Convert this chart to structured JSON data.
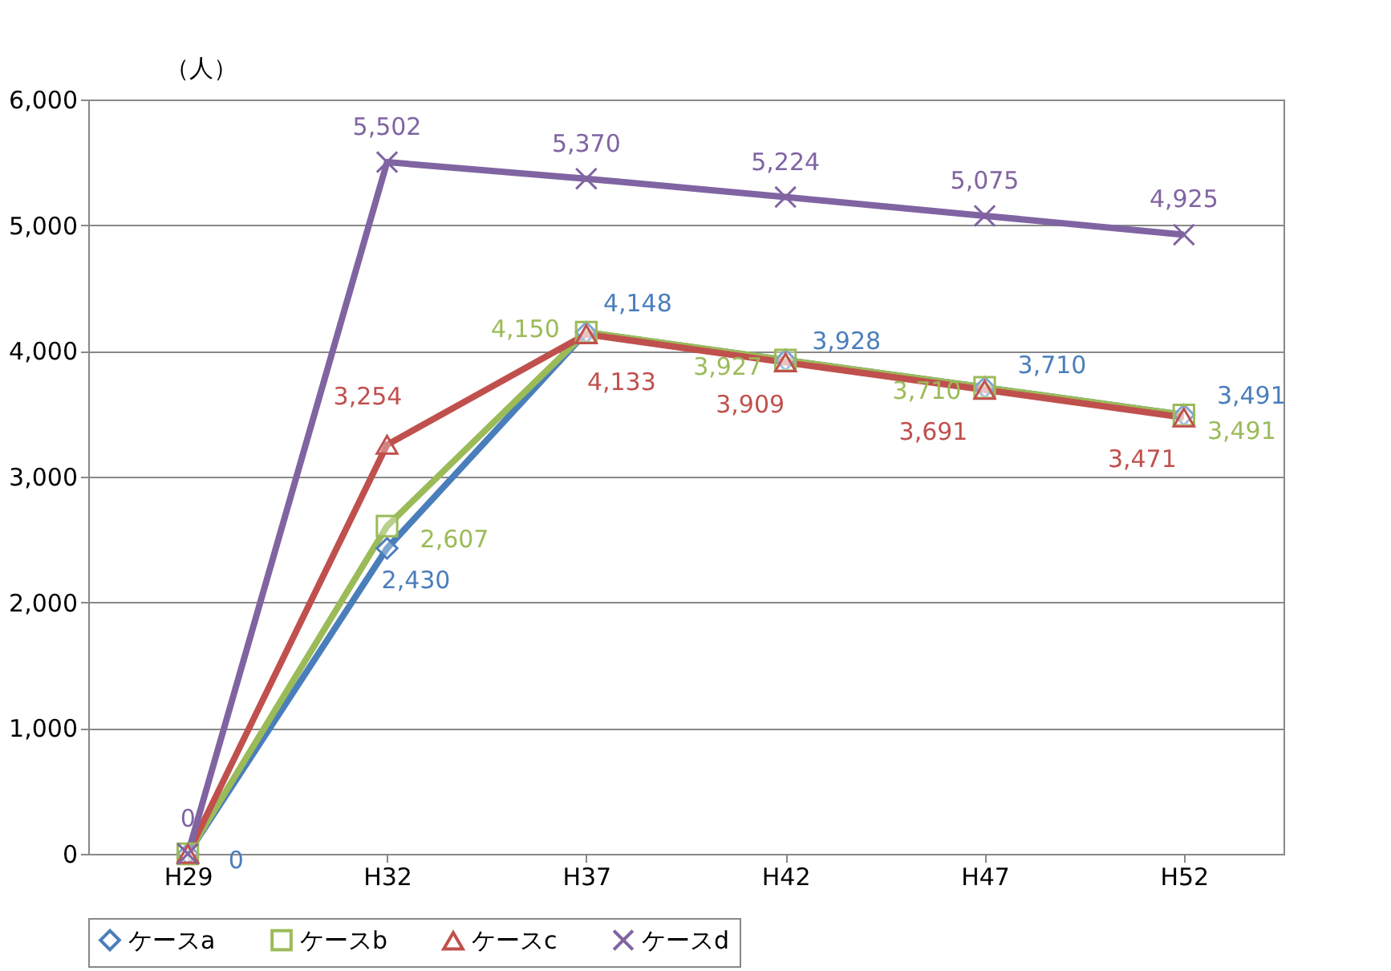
{
  "chart_data": {
    "type": "line",
    "ylabel": "（人）",
    "categories": [
      "H29",
      "H32",
      "H37",
      "H42",
      "H47",
      "H52"
    ],
    "series": [
      {
        "name": "ケースa",
        "color": "#4a7ebb",
        "marker": "diamond",
        "values": [
          0,
          2430,
          4148,
          3928,
          3710,
          3491
        ],
        "value_labels": [
          "0",
          "2,430",
          "4,148",
          "3,928",
          "3,710",
          "3,491"
        ]
      },
      {
        "name": "ケースb",
        "color": "#9bbb59",
        "marker": "square",
        "values": [
          0,
          2607,
          4150,
          3927,
          3710,
          3491
        ],
        "value_labels": [
          null,
          "2,607",
          "4,150",
          "3,927",
          "3,710",
          "3,491"
        ]
      },
      {
        "name": "ケースc",
        "color": "#c0504d",
        "marker": "triangle",
        "values": [
          0,
          3254,
          4133,
          3909,
          3691,
          3471
        ],
        "value_labels": [
          null,
          "3,254",
          "4,133",
          "3,909",
          "3,691",
          "3,471"
        ]
      },
      {
        "name": "ケースd",
        "color": "#8064a2",
        "marker": "cross",
        "values": [
          0,
          5502,
          5370,
          5224,
          5075,
          4925
        ],
        "value_labels": [
          "0",
          "5,502",
          "5,370",
          "5,224",
          "5,075",
          "4,925"
        ]
      }
    ],
    "ylim": [
      0,
      6000
    ],
    "yticks": [
      0,
      {
        "value": 1000,
        "label": "1,000"
      },
      {
        "value": 2000,
        "label": "2,000"
      },
      {
        "value": 3000,
        "label": "3,000"
      },
      {
        "value": 4000,
        "label": "4,000"
      },
      {
        "value": 5000,
        "label": "5,000"
      },
      {
        "value": 6000,
        "label": "6,000"
      }
    ],
    "grid": "y",
    "legend": "bottom",
    "line_style": "solid"
  }
}
